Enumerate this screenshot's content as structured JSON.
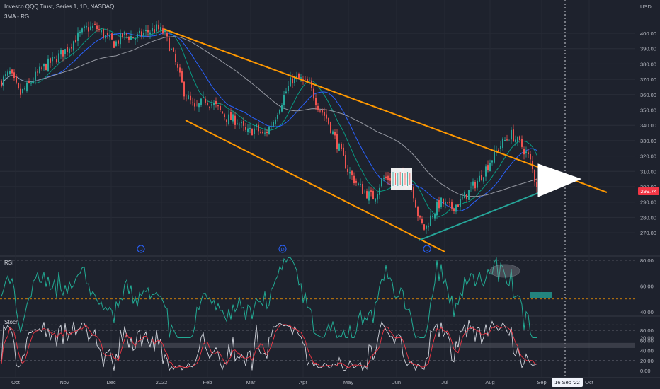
{
  "header": {
    "title": "Invesco QQQ Trust, Series 1, 1D, NASDAQ",
    "ma_label": "3MA - RG",
    "currency": "USD"
  },
  "panes": {
    "rsi_label": "RSI",
    "stoch_label": "Stoch"
  },
  "last_price_badge": "299.74",
  "crosshair_date_badge": "16 Sep '22",
  "colors": {
    "background": "#1e222d",
    "up": "#26a69a",
    "down": "#ef5350",
    "channel": "#ff9800",
    "support": "#26a69a",
    "ma_fast": "#2962ff",
    "ma_mid": "#089981",
    "ma_slow": "#9598a1",
    "rsi_line": "#22ab94",
    "stoch_k": "#d1d4dc",
    "stoch_d": "#f23645"
  },
  "chart_data": [
    {
      "type": "candlestick",
      "title": "Invesco QQQ Trust, Series 1, 1D, NASDAQ",
      "x_ticks": [
        "Oct",
        "Nov",
        "Dec",
        "2022",
        "Feb",
        "Mar",
        "Apr",
        "May",
        "Jun",
        "Jul",
        "Aug",
        "Sep",
        "16 Sep '22",
        "Oct"
      ],
      "y_ticks": [
        270,
        280,
        290,
        300,
        310,
        320,
        330,
        340,
        350,
        360,
        370,
        380,
        390,
        400
      ],
      "ylim": [
        264,
        415
      ],
      "dividend_markers": [
        "D",
        "D",
        "D"
      ],
      "approx_close_path": [
        {
          "x": "Oct 2021",
          "y": 368
        },
        {
          "x": "Nov 2021",
          "y": 392
        },
        {
          "x": "Dec 2021",
          "y": 400
        },
        {
          "x": "Jan 2022",
          "y": 395
        },
        {
          "x": "Feb 2022",
          "y": 352
        },
        {
          "x": "Mar 2022",
          "y": 330
        },
        {
          "x": "Apr 2022",
          "y": 367
        },
        {
          "x": "May 2022",
          "y": 300
        },
        {
          "x": "Jun 2022",
          "y": 305
        },
        {
          "x": "Jul 2022",
          "y": 283
        },
        {
          "x": "Aug 2022",
          "y": 320
        },
        {
          "x": "Sep 2022",
          "y": 299.74
        }
      ],
      "annotations": [
        "descending channel",
        "ascending support line",
        "triangle"
      ]
    },
    {
      "type": "line",
      "title": "RSI",
      "y_ticks": [
        20,
        40,
        60,
        80
      ],
      "ylim": [
        17,
        85
      ]
    },
    {
      "type": "line",
      "title": "Stoch",
      "y_ticks": [
        "0.00",
        "20.00",
        "40.00",
        "60.00",
        "80.00"
      ],
      "ylim": [
        -5,
        105
      ]
    }
  ],
  "y_labels_main": [
    "270.00",
    "280.00",
    "290.00",
    "300.00",
    "310.00",
    "320.00",
    "330.00",
    "340.00",
    "350.00",
    "360.00",
    "370.00",
    "380.00",
    "390.00",
    "400.00"
  ],
  "y_labels_rsi": [
    "20.00",
    "40.00",
    "60.00",
    "80.00"
  ],
  "y_labels_stoch": [
    "0.00",
    "20.00",
    "40.00",
    "60.00",
    "80.00"
  ],
  "x_labels": [
    "Oct",
    "Nov",
    "Dec",
    "2022",
    "Feb",
    "Mar",
    "Apr",
    "May",
    "Jun",
    "Jul",
    "Aug",
    "Sep",
    "Oct"
  ]
}
